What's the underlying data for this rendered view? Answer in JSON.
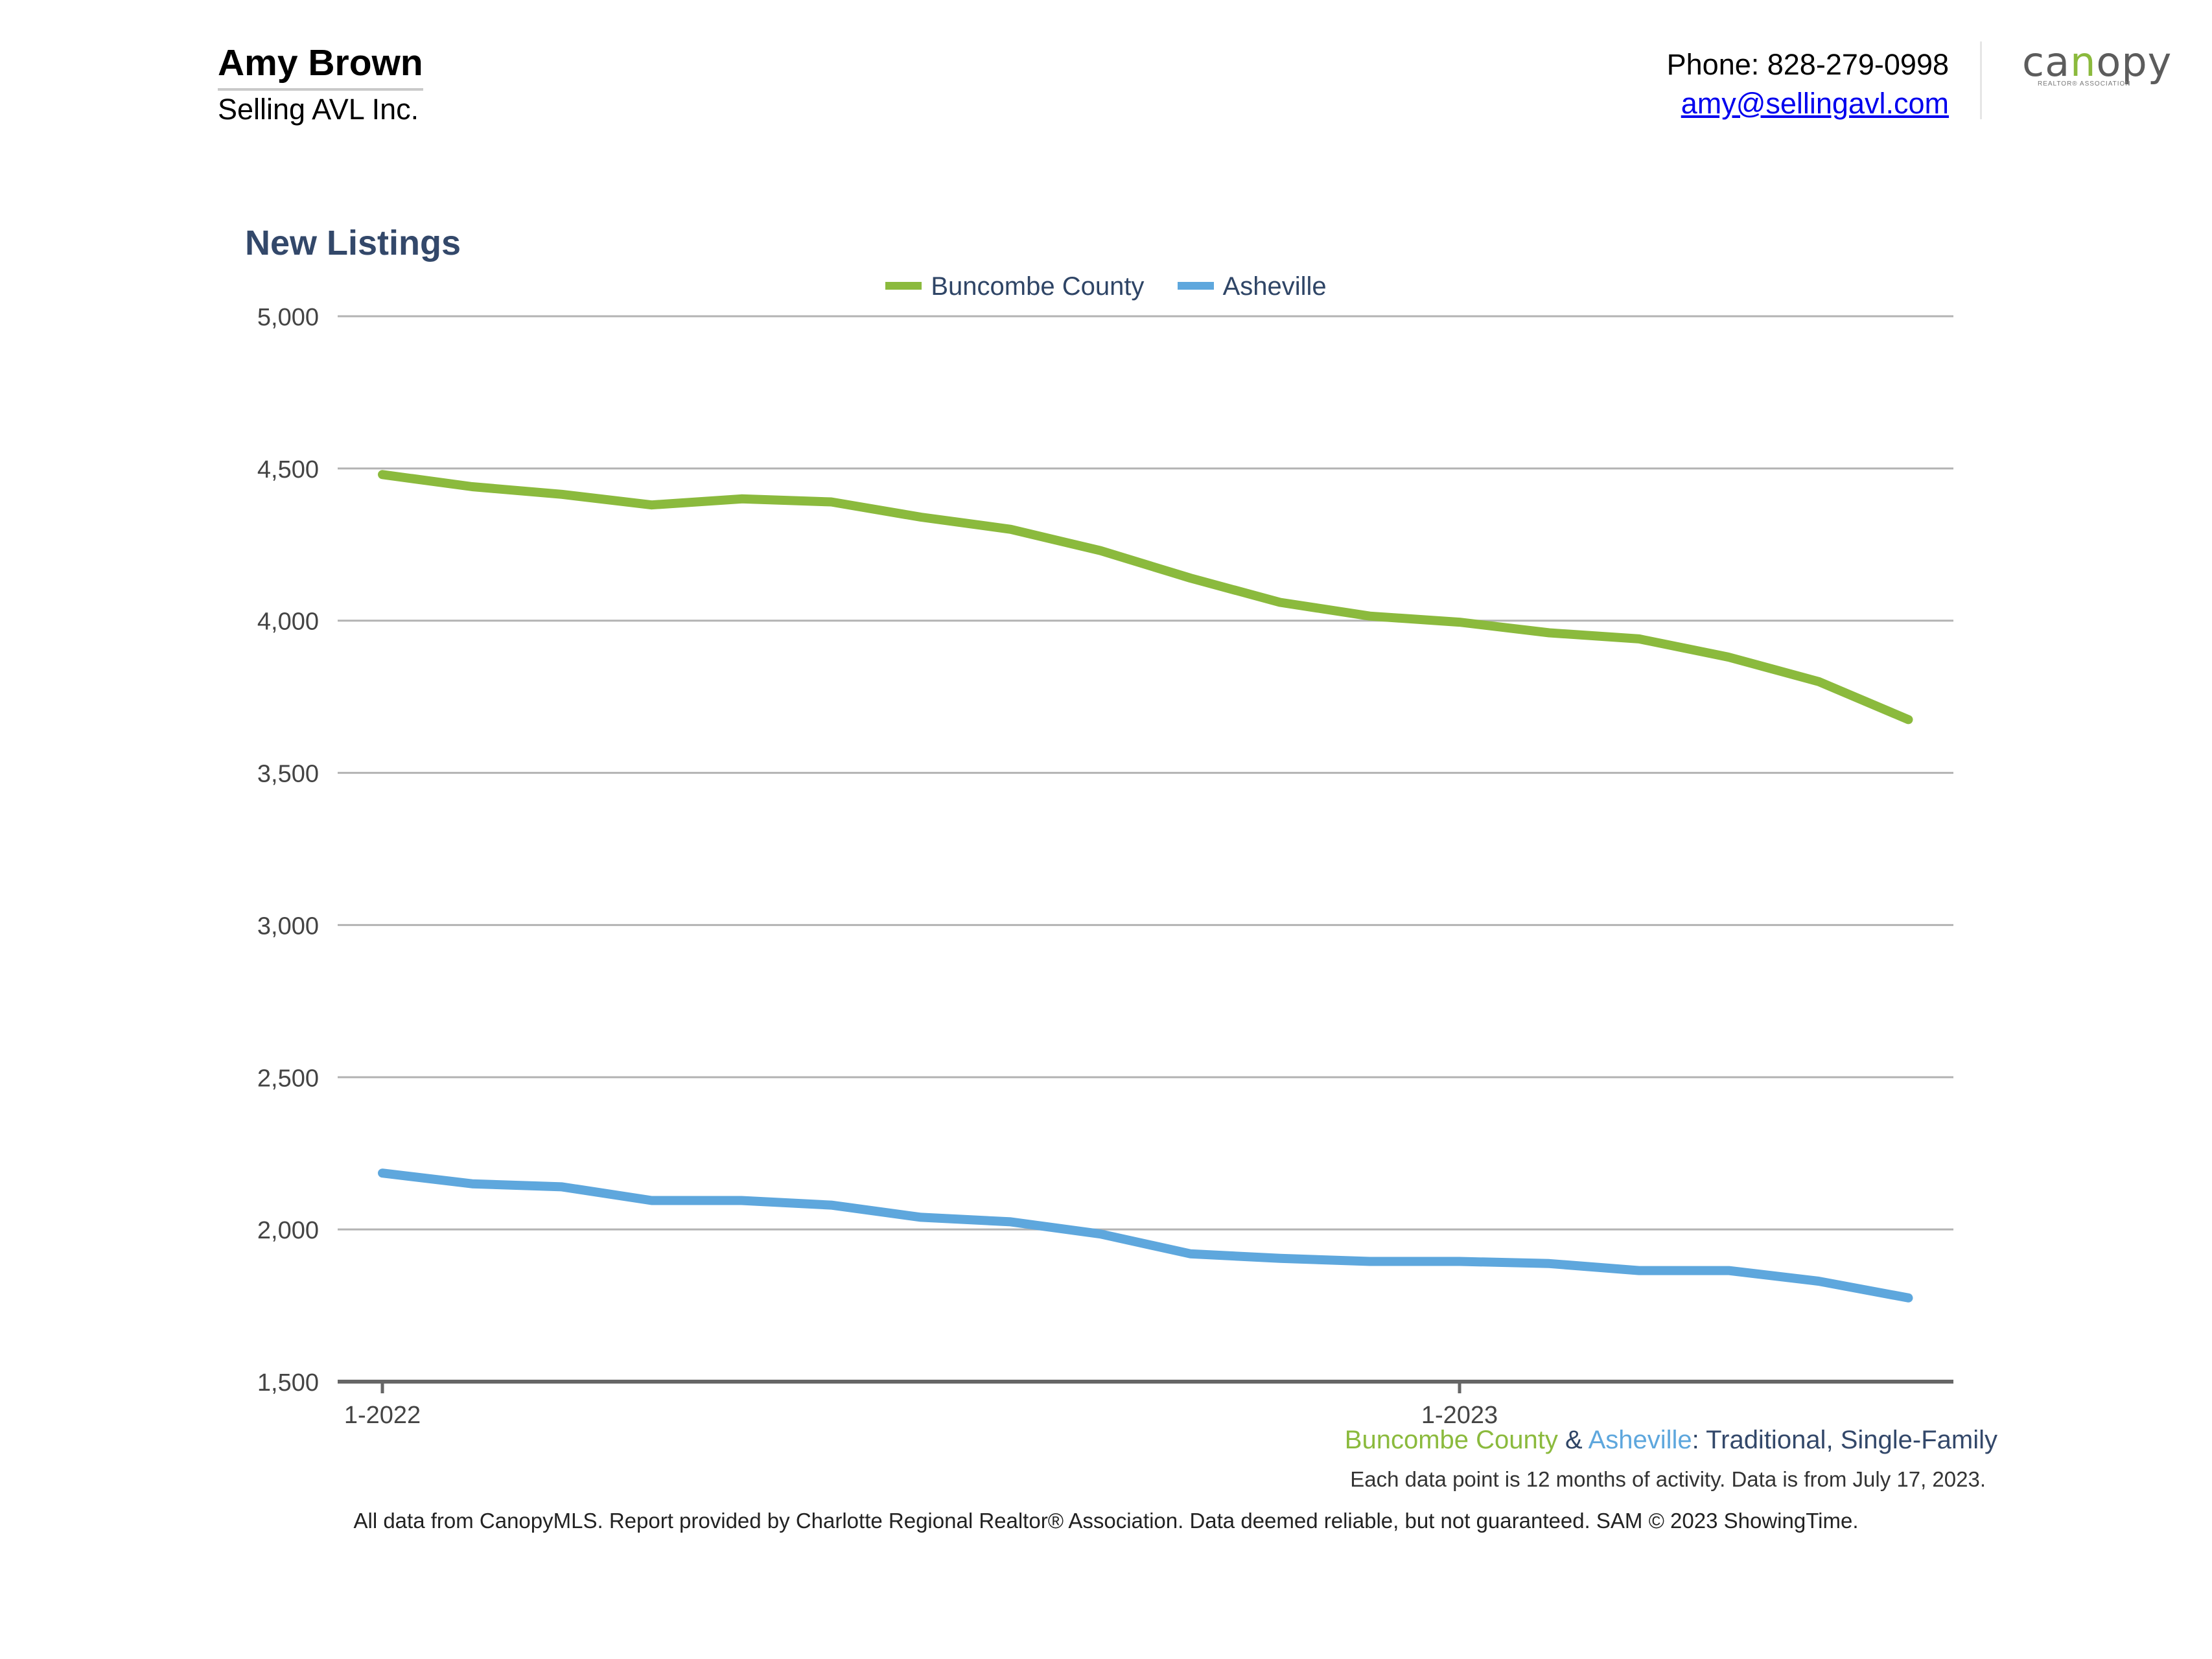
{
  "header": {
    "agent_name": "Amy Brown",
    "company": "Selling AVL Inc.",
    "phone": "Phone: 828-279-0998",
    "email": "amy@sellingavl.com",
    "logo_text_pre": "ca",
    "logo_text_o": "n",
    "logo_text_post": "opy",
    "logo_subtitle": "REALTOR® ASSOCIATION"
  },
  "colors": {
    "buncombe": "#8bba3d",
    "asheville": "#5ea7dd",
    "text": "#2f4566"
  },
  "chart_data": {
    "type": "line",
    "title": "New Listings",
    "x": [
      "1-2022",
      "2-2022",
      "3-2022",
      "4-2022",
      "5-2022",
      "6-2022",
      "7-2022",
      "8-2022",
      "9-2022",
      "10-2022",
      "11-2022",
      "12-2022",
      "1-2023",
      "2-2023",
      "3-2023",
      "4-2023",
      "5-2023",
      "6-2023"
    ],
    "x_tick_labels": [
      "1-2022",
      "1-2023"
    ],
    "y_ticks": [
      "5,000",
      "4,500",
      "4,000",
      "3,500",
      "3,000",
      "2,500",
      "2,000",
      "1,500"
    ],
    "ylim": [
      1500,
      5000
    ],
    "grid": true,
    "legend_position": "top-center",
    "series": [
      {
        "name": "Buncombe County",
        "color": "#8bba3d",
        "values": [
          4480,
          4440,
          4415,
          4380,
          4400,
          4390,
          4340,
          4300,
          4230,
          4140,
          4060,
          4015,
          3995,
          3960,
          3940,
          3880,
          3800,
          3675
        ]
      },
      {
        "name": "Asheville",
        "color": "#5ea7dd",
        "values": [
          2185,
          2150,
          2140,
          2095,
          2095,
          2080,
          2040,
          2025,
          1985,
          1920,
          1905,
          1895,
          1895,
          1888,
          1865,
          1865,
          1830,
          1775
        ]
      }
    ],
    "subtitle": {
      "buncombe": "Buncombe County",
      "amp": " & ",
      "asheville": "Asheville",
      "rest_colon": ":",
      "rest_a": "Traditional",
      "rest_comma": ",",
      "rest_b": "Single-Family"
    },
    "note": "Each data point is 12 months of activity. Data is from July 17, 2023."
  },
  "footer": "All data from CanopyMLS. Report provided by Charlotte Regional Realtor® Association. Data deemed reliable, but not guaranteed. SAM © 2023 ShowingTime."
}
